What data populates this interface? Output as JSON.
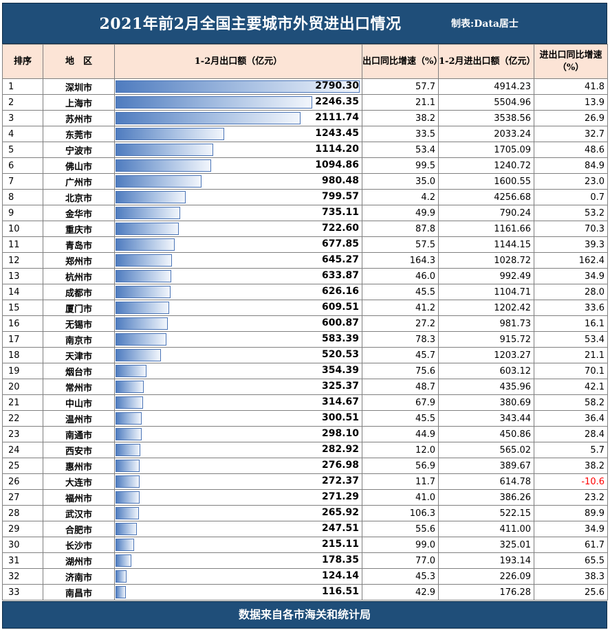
{
  "title": "2021年前2月全国主要城市外贸进出口情况",
  "credit": "制表:Data居士",
  "headers": {
    "rank": "排序",
    "region": "地　区",
    "export": "1-2月出口额（亿元）",
    "export_yoy": "出口同比增速（%）",
    "trade": "1-2月进出口额（亿元）",
    "trade_yoy": "进出口同比增速（%）"
  },
  "colors": {
    "title_bg": "#1f4e79",
    "header_bg": "#fce4d6",
    "bar": "#4f7cbf",
    "negative": "#ff0000"
  },
  "rows": [
    {
      "rank": "1",
      "city": "深圳市",
      "export": "2790.30",
      "export_yoy": "57.7",
      "trade": "4914.23",
      "trade_yoy": "41.8"
    },
    {
      "rank": "2",
      "city": "上海市",
      "export": "2246.35",
      "export_yoy": "21.1",
      "trade": "5504.96",
      "trade_yoy": "13.9"
    },
    {
      "rank": "3",
      "city": "苏州市",
      "export": "2111.74",
      "export_yoy": "38.2",
      "trade": "3538.56",
      "trade_yoy": "26.9"
    },
    {
      "rank": "4",
      "city": "东莞市",
      "export": "1243.45",
      "export_yoy": "33.5",
      "trade": "2033.24",
      "trade_yoy": "32.7"
    },
    {
      "rank": "5",
      "city": "宁波市",
      "export": "1114.20",
      "export_yoy": "53.4",
      "trade": "1705.09",
      "trade_yoy": "48.6"
    },
    {
      "rank": "6",
      "city": "佛山市",
      "export": "1094.86",
      "export_yoy": "99.5",
      "trade": "1240.72",
      "trade_yoy": "84.9"
    },
    {
      "rank": "7",
      "city": "广州市",
      "export": "980.48",
      "export_yoy": "35.0",
      "trade": "1600.55",
      "trade_yoy": "23.0"
    },
    {
      "rank": "8",
      "city": "北京市",
      "export": "799.57",
      "export_yoy": "4.2",
      "trade": "4256.68",
      "trade_yoy": "0.7"
    },
    {
      "rank": "9",
      "city": "金华市",
      "export": "735.11",
      "export_yoy": "49.9",
      "trade": "790.24",
      "trade_yoy": "53.2"
    },
    {
      "rank": "10",
      "city": "重庆市",
      "export": "722.60",
      "export_yoy": "87.8",
      "trade": "1161.66",
      "trade_yoy": "70.3"
    },
    {
      "rank": "11",
      "city": "青岛市",
      "export": "677.85",
      "export_yoy": "57.5",
      "trade": "1144.15",
      "trade_yoy": "39.3"
    },
    {
      "rank": "12",
      "city": "郑州市",
      "export": "645.27",
      "export_yoy": "164.3",
      "trade": "1028.72",
      "trade_yoy": "162.4"
    },
    {
      "rank": "13",
      "city": "杭州市",
      "export": "633.87",
      "export_yoy": "46.0",
      "trade": "992.49",
      "trade_yoy": "34.9"
    },
    {
      "rank": "14",
      "city": "成都市",
      "export": "626.16",
      "export_yoy": "45.5",
      "trade": "1104.71",
      "trade_yoy": "28.0"
    },
    {
      "rank": "15",
      "city": "厦门市",
      "export": "609.51",
      "export_yoy": "41.2",
      "trade": "1202.42",
      "trade_yoy": "33.6"
    },
    {
      "rank": "16",
      "city": "无锡市",
      "export": "600.87",
      "export_yoy": "27.2",
      "trade": "981.73",
      "trade_yoy": "16.1"
    },
    {
      "rank": "17",
      "city": "南京市",
      "export": "583.39",
      "export_yoy": "78.3",
      "trade": "915.72",
      "trade_yoy": "53.4"
    },
    {
      "rank": "18",
      "city": "天津市",
      "export": "520.53",
      "export_yoy": "45.7",
      "trade": "1203.27",
      "trade_yoy": "21.1"
    },
    {
      "rank": "19",
      "city": "烟台市",
      "export": "354.39",
      "export_yoy": "75.6",
      "trade": "603.12",
      "trade_yoy": "70.1"
    },
    {
      "rank": "20",
      "city": "常州市",
      "export": "325.37",
      "export_yoy": "48.7",
      "trade": "435.96",
      "trade_yoy": "42.1"
    },
    {
      "rank": "21",
      "city": "中山市",
      "export": "314.67",
      "export_yoy": "67.9",
      "trade": "380.69",
      "trade_yoy": "58.2"
    },
    {
      "rank": "22",
      "city": "温州市",
      "export": "300.51",
      "export_yoy": "45.5",
      "trade": "343.44",
      "trade_yoy": "36.4"
    },
    {
      "rank": "23",
      "city": "南通市",
      "export": "298.10",
      "export_yoy": "44.9",
      "trade": "450.86",
      "trade_yoy": "28.4"
    },
    {
      "rank": "24",
      "city": "西安市",
      "export": "282.92",
      "export_yoy": "12.0",
      "trade": "565.02",
      "trade_yoy": "5.7"
    },
    {
      "rank": "25",
      "city": "惠州市",
      "export": "276.98",
      "export_yoy": "56.9",
      "trade": "389.67",
      "trade_yoy": "38.2"
    },
    {
      "rank": "26",
      "city": "大连市",
      "export": "272.37",
      "export_yoy": "11.7",
      "trade": "614.78",
      "trade_yoy": "-10.6"
    },
    {
      "rank": "27",
      "city": "福州市",
      "export": "271.29",
      "export_yoy": "41.0",
      "trade": "386.26",
      "trade_yoy": "23.2"
    },
    {
      "rank": "28",
      "city": "武汉市",
      "export": "265.92",
      "export_yoy": "106.3",
      "trade": "522.15",
      "trade_yoy": "89.9"
    },
    {
      "rank": "29",
      "city": "合肥市",
      "export": "247.51",
      "export_yoy": "55.6",
      "trade": "411.00",
      "trade_yoy": "34.9"
    },
    {
      "rank": "30",
      "city": "长沙市",
      "export": "215.11",
      "export_yoy": "99.0",
      "trade": "325.01",
      "trade_yoy": "61.7"
    },
    {
      "rank": "31",
      "city": "湖州市",
      "export": "178.35",
      "export_yoy": "77.0",
      "trade": "193.14",
      "trade_yoy": "65.5"
    },
    {
      "rank": "32",
      "city": "济南市",
      "export": "124.14",
      "export_yoy": "45.3",
      "trade": "226.09",
      "trade_yoy": "38.3"
    },
    {
      "rank": "33",
      "city": "南昌市",
      "export": "116.51",
      "export_yoy": "42.9",
      "trade": "176.28",
      "trade_yoy": "25.6"
    }
  ],
  "footer": "数据来自各市海关和统计局"
}
